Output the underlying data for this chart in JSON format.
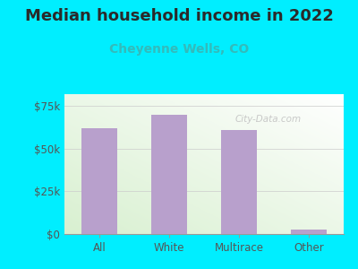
{
  "title": "Median household income in 2022",
  "subtitle": "Cheyenne Wells, CO",
  "categories": [
    "All",
    "White",
    "Multirace",
    "Other"
  ],
  "values": [
    62000,
    70000,
    61000,
    2500
  ],
  "bar_color": "#b8a0cc",
  "title_fontsize": 13,
  "subtitle_fontsize": 10,
  "subtitle_color": "#33bbbb",
  "title_color": "#2a2a2a",
  "background_outer": "#00eeff",
  "yticks": [
    0,
    25000,
    50000,
    75000
  ],
  "ytick_labels": [
    "$0",
    "$25k",
    "$50k",
    "$75k"
  ],
  "ylim": [
    0,
    82000
  ],
  "tick_color": "#555555",
  "watermark": "City-Data.com"
}
